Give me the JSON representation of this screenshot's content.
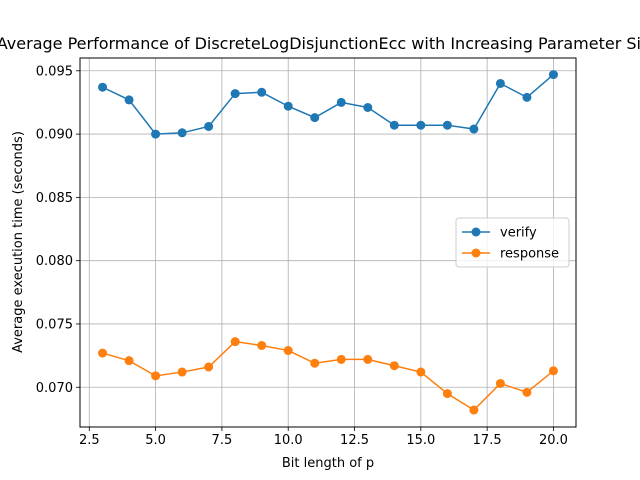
{
  "chart_data": {
    "type": "line",
    "title": "Average Performance of DiscreteLogDisjunctionEcc with Increasing Parameter Size",
    "xlabel": "Bit length of p",
    "ylabel": "Average execution time (seconds)",
    "xlim": [
      2.15,
      20.85
    ],
    "ylim": [
      0.06686,
      0.09601
    ],
    "xticks": [
      2.5,
      5.0,
      7.5,
      10.0,
      12.5,
      15.0,
      17.5,
      20.0
    ],
    "xtick_labels": [
      "2.5",
      "5.0",
      "7.5",
      "10.0",
      "12.5",
      "15.0",
      "17.5",
      "20.0"
    ],
    "yticks": [
      0.07,
      0.075,
      0.08,
      0.085,
      0.09,
      0.095
    ],
    "ytick_labels": [
      "0.070",
      "0.075",
      "0.080",
      "0.085",
      "0.090",
      "0.095"
    ],
    "grid": true,
    "legend_position": "center-right",
    "x": [
      3,
      4,
      5,
      6,
      7,
      8,
      9,
      10,
      11,
      12,
      13,
      14,
      15,
      16,
      17,
      18,
      19,
      20
    ],
    "series": [
      {
        "name": "verify",
        "color": "#1f77b4",
        "values": [
          0.0937,
          0.0927,
          0.09,
          0.0901,
          0.0906,
          0.0932,
          0.0933,
          0.0922,
          0.0913,
          0.0925,
          0.0921,
          0.0907,
          0.0907,
          0.0907,
          0.0904,
          0.094,
          0.0929,
          0.0947
        ]
      },
      {
        "name": "response",
        "color": "#ff7f0e",
        "values": [
          0.0727,
          0.0721,
          0.0709,
          0.0712,
          0.0716,
          0.0736,
          0.0733,
          0.0729,
          0.0719,
          0.0722,
          0.0722,
          0.0717,
          0.0712,
          0.0695,
          0.0682,
          0.0703,
          0.0696,
          0.0713
        ]
      }
    ]
  }
}
